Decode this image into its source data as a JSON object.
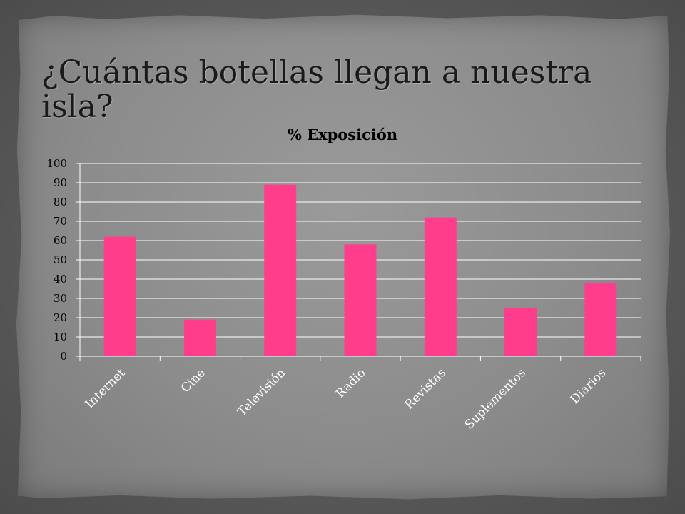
{
  "slide": {
    "title": "¿Cuántas botellas llegan a nuestra isla?"
  },
  "colors": {
    "bar": "#ff3d8b",
    "grid": "#ffffff",
    "axis": "#ffffff"
  },
  "chart_data": {
    "type": "bar",
    "title": "% Exposición",
    "categories": [
      "Internet",
      "Cine",
      "Televisión",
      "Radio",
      "Revistas",
      "Suplementos",
      "Diarios"
    ],
    "series": [
      {
        "values": [
          62,
          19,
          89,
          58,
          72,
          25,
          38
        ]
      }
    ],
    "ylim": [
      0,
      100
    ],
    "yticks": [
      "0",
      "10",
      "20",
      "30",
      "40",
      "50",
      "60",
      "70",
      "80",
      "90",
      "100"
    ],
    "grid": true,
    "legend": "none"
  }
}
